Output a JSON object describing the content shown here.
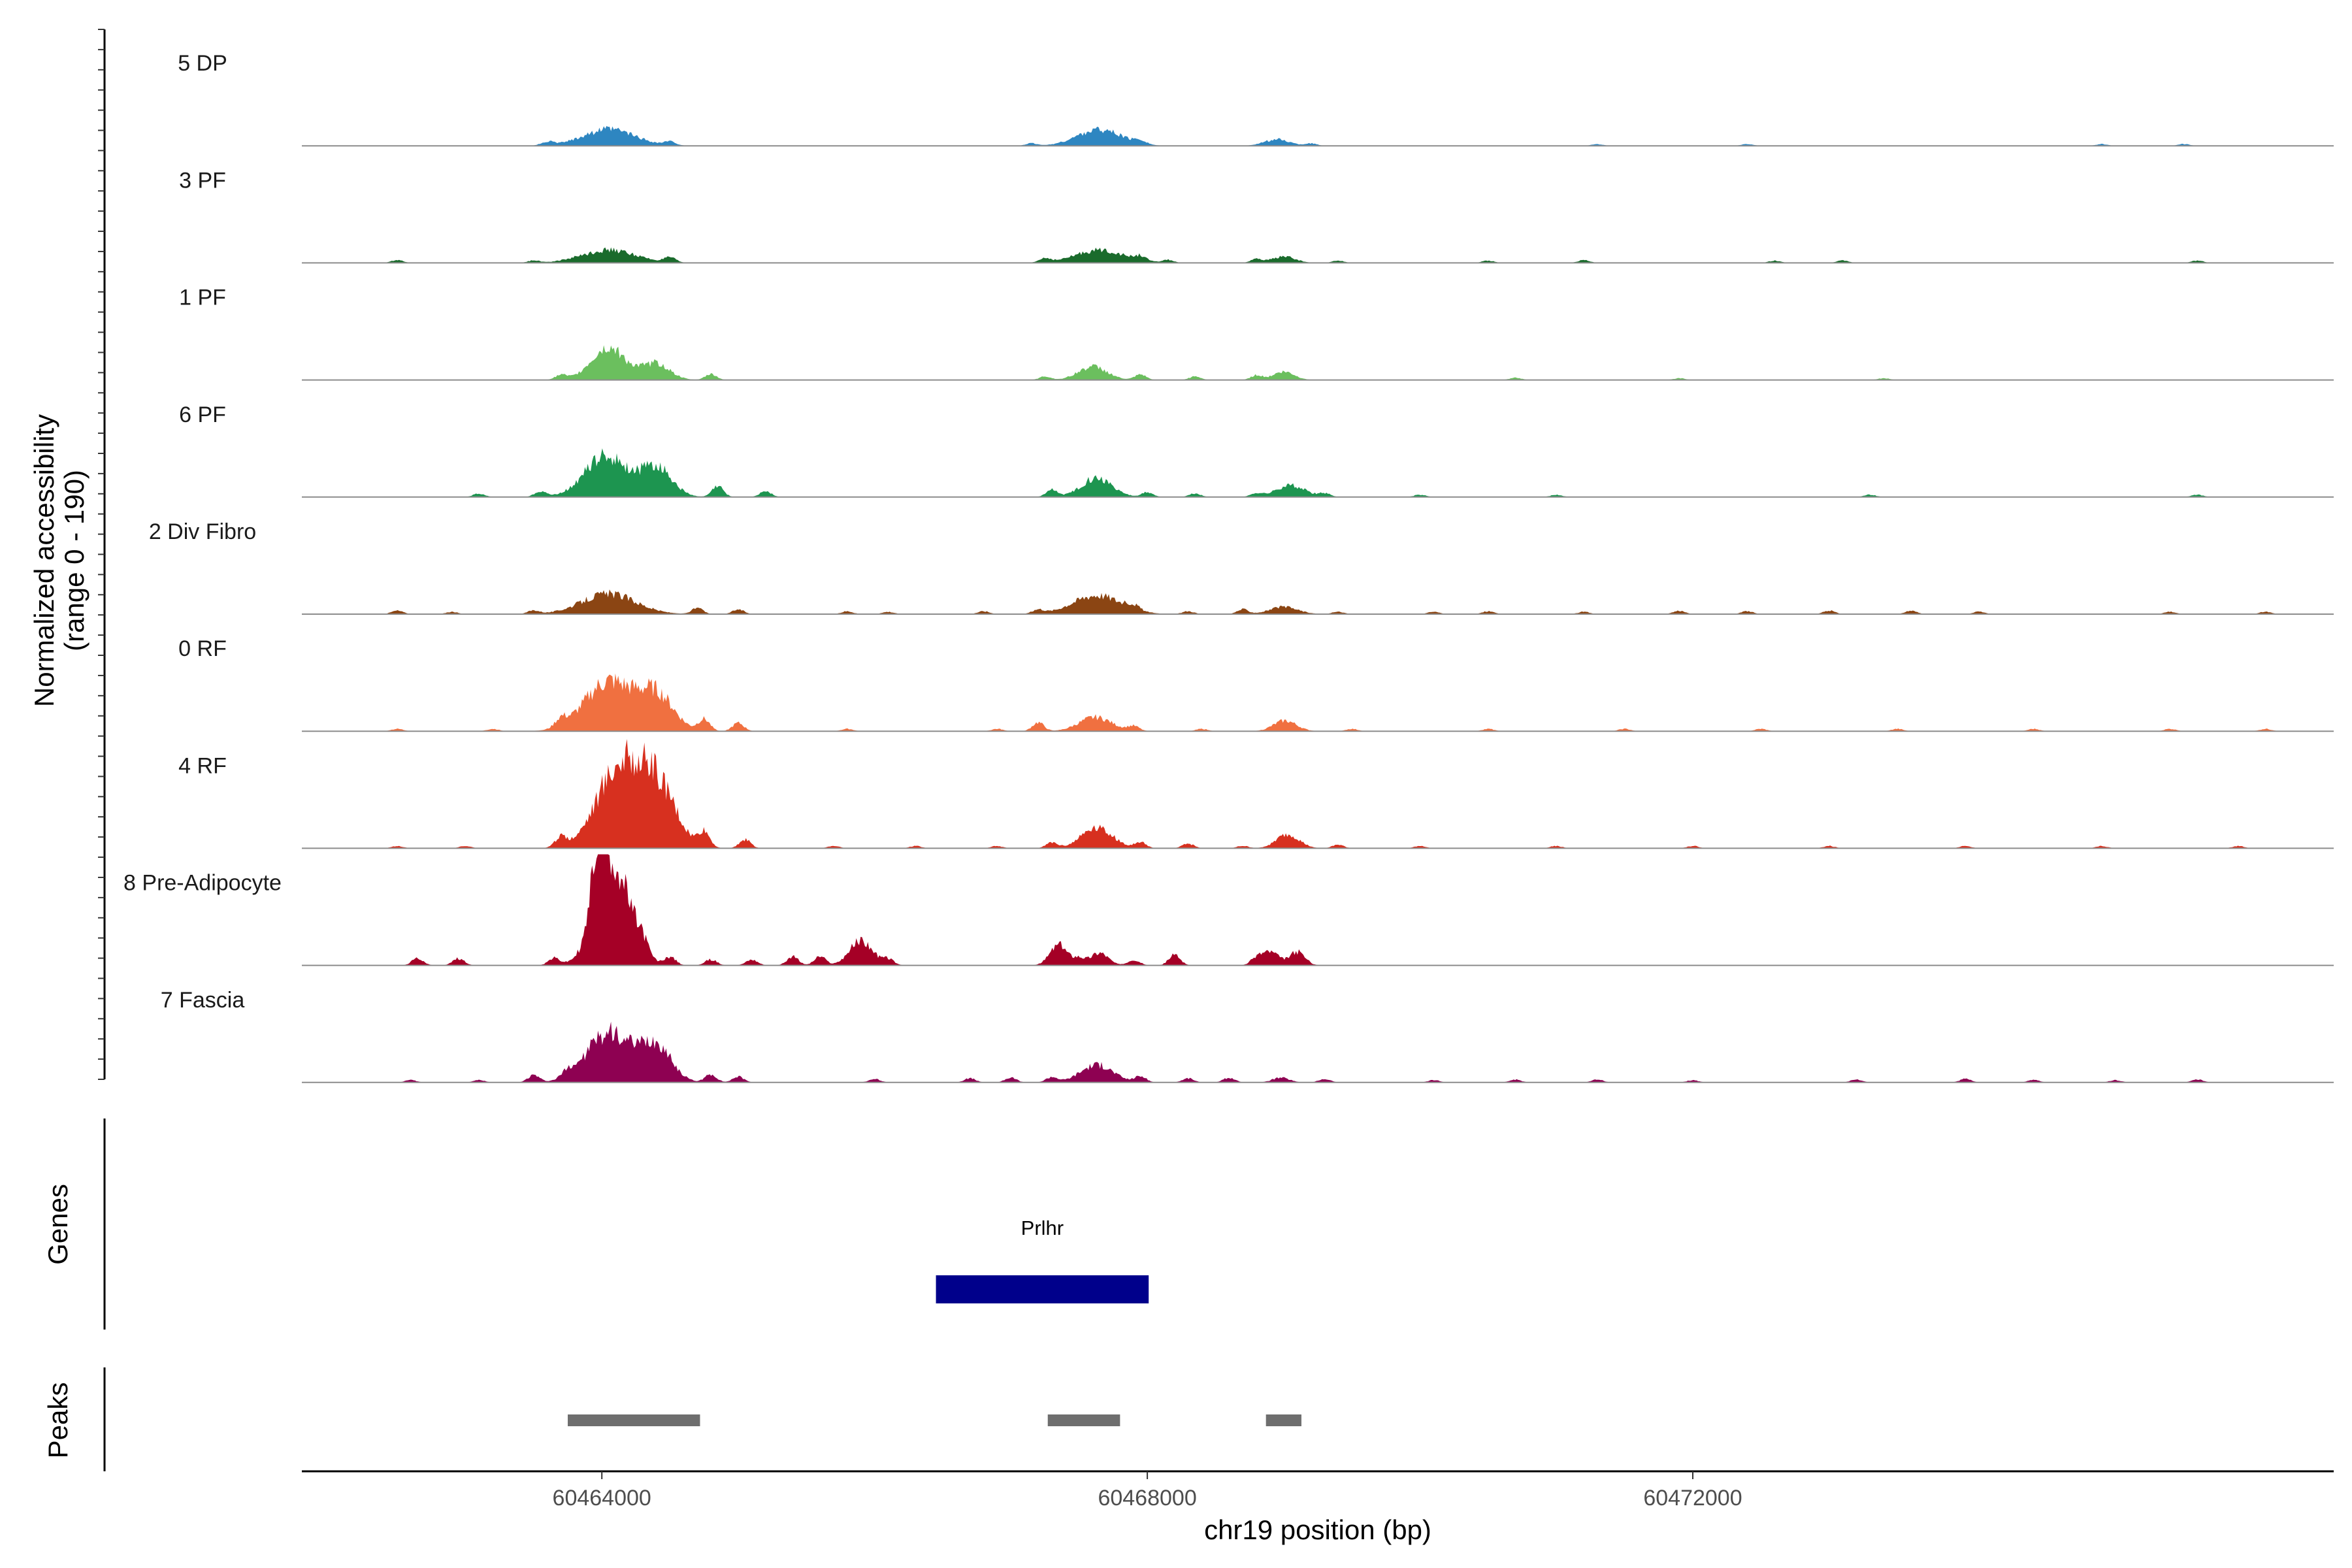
{
  "chart_data": {
    "type": "area",
    "chromosome": "chr19",
    "xlabel": "chr19 position (bp)",
    "ylabel": "Normalized accessibility",
    "ylabel_range": "(range 0 - 190)",
    "y_range": [
      0,
      190
    ],
    "x_range": [
      60461800,
      60476700
    ],
    "x_ticks": [
      {
        "value": 60464000,
        "label": "60464000"
      },
      {
        "value": 60468000,
        "label": "60468000"
      },
      {
        "value": 60472000,
        "label": "60472000"
      }
    ],
    "tracks": [
      {
        "name": "5 DP",
        "color": "#2E86C1",
        "peaks": [
          [
            60464050,
            270,
            28
          ],
          [
            60467650,
            230,
            28
          ],
          [
            60468950,
            130,
            11
          ]
        ],
        "bumps": [
          [
            60463600,
            6
          ],
          [
            60464500,
            6
          ],
          [
            60467150,
            4
          ],
          [
            60467950,
            6
          ],
          [
            60469200,
            4
          ],
          [
            60471300,
            3
          ],
          [
            60472400,
            3
          ],
          [
            60475000,
            3
          ],
          [
            60475600,
            3
          ]
        ]
      },
      {
        "name": "3 PF",
        "color": "#1A6B2C",
        "peaks": [
          [
            60464050,
            280,
            22
          ],
          [
            60467650,
            250,
            22
          ],
          [
            60469000,
            120,
            11
          ]
        ],
        "bumps": [
          [
            60462500,
            5
          ],
          [
            60463500,
            4
          ],
          [
            60464500,
            8
          ],
          [
            60467250,
            7
          ],
          [
            60467950,
            8
          ],
          [
            60468150,
            5
          ],
          [
            60468800,
            6
          ],
          [
            60469400,
            4
          ],
          [
            60470500,
            4
          ],
          [
            60471200,
            5
          ],
          [
            60472600,
            4
          ],
          [
            60473100,
            4
          ],
          [
            60475700,
            4
          ]
        ]
      },
      {
        "name": "1 PF",
        "color": "#6BBF5E",
        "peaks": [
          [
            60464050,
            180,
            55
          ],
          [
            60464400,
            140,
            28
          ],
          [
            60467600,
            150,
            23
          ],
          [
            60469000,
            110,
            14
          ]
        ],
        "bumps": [
          [
            60463700,
            8
          ],
          [
            60464800,
            10
          ],
          [
            60467250,
            6
          ],
          [
            60467950,
            9
          ],
          [
            60468350,
            6
          ],
          [
            60468800,
            8
          ],
          [
            60470700,
            4
          ],
          [
            60471900,
            3
          ],
          [
            60473400,
            3
          ]
        ]
      },
      {
        "name": "6 PF",
        "color": "#1D9550",
        "peaks": [
          [
            60464030,
            220,
            70
          ],
          [
            60464400,
            160,
            50
          ],
          [
            60467630,
            160,
            33
          ],
          [
            60469050,
            150,
            20
          ]
        ],
        "bumps": [
          [
            60463100,
            6
          ],
          [
            60463550,
            10
          ],
          [
            60464850,
            18
          ],
          [
            60465200,
            10
          ],
          [
            60467300,
            12
          ],
          [
            60468000,
            8
          ],
          [
            60468350,
            6
          ],
          [
            60468800,
            6
          ],
          [
            60469300,
            6
          ],
          [
            60470000,
            4
          ],
          [
            60471000,
            4
          ],
          [
            60473300,
            4
          ],
          [
            60475700,
            4
          ]
        ]
      },
      {
        "name": "2 Div Fibro",
        "color": "#8B4513",
        "peaks": [
          [
            60464050,
            280,
            35
          ],
          [
            60467630,
            250,
            33
          ],
          [
            60469000,
            150,
            12
          ]
        ],
        "bumps": [
          [
            60462500,
            6
          ],
          [
            60462900,
            4
          ],
          [
            60463500,
            6
          ],
          [
            60464700,
            10
          ],
          [
            60465000,
            8
          ],
          [
            60465800,
            5
          ],
          [
            60466100,
            4
          ],
          [
            60466800,
            5
          ],
          [
            60467200,
            7
          ],
          [
            60467900,
            8
          ],
          [
            60468300,
            5
          ],
          [
            60468700,
            8
          ],
          [
            60469400,
            4
          ],
          [
            60470100,
            4
          ],
          [
            60470500,
            5
          ],
          [
            60471200,
            4
          ],
          [
            60471900,
            6
          ],
          [
            60472400,
            5
          ],
          [
            60473000,
            6
          ],
          [
            60473600,
            6
          ],
          [
            60474100,
            4
          ],
          [
            60475500,
            4
          ],
          [
            60476200,
            4
          ]
        ]
      },
      {
        "name": "0 RF",
        "color": "#F07040",
        "peaks": [
          [
            60464050,
            250,
            85
          ],
          [
            60464400,
            180,
            60
          ],
          [
            60467620,
            170,
            24
          ],
          [
            60469010,
            120,
            18
          ]
        ],
        "bumps": [
          [
            60463700,
            14
          ],
          [
            60464750,
            20
          ],
          [
            60465000,
            14
          ],
          [
            60467200,
            15
          ],
          [
            60467900,
            8
          ],
          [
            60462500,
            4
          ],
          [
            60463200,
            4
          ],
          [
            60465800,
            4
          ],
          [
            60466900,
            4
          ],
          [
            60468400,
            4
          ],
          [
            60469500,
            4
          ],
          [
            60470500,
            4
          ],
          [
            60471500,
            4
          ],
          [
            60472500,
            4
          ],
          [
            60473500,
            4
          ],
          [
            60474500,
            4
          ],
          [
            60475500,
            4
          ],
          [
            60476200,
            4
          ]
        ]
      },
      {
        "name": "4 RF",
        "color": "#D7301F",
        "peaks": [
          [
            60464120,
            230,
            135
          ],
          [
            60464400,
            200,
            100
          ],
          [
            60467630,
            160,
            36
          ],
          [
            60469030,
            120,
            23
          ]
        ],
        "bumps": [
          [
            60463700,
            16
          ],
          [
            60464750,
            25
          ],
          [
            60465050,
            15
          ],
          [
            60467300,
            10
          ],
          [
            60467950,
            10
          ],
          [
            60468300,
            8
          ],
          [
            60469400,
            6
          ],
          [
            60462500,
            4
          ],
          [
            60463000,
            4
          ],
          [
            60465700,
            4
          ],
          [
            60466300,
            4
          ],
          [
            60466900,
            4
          ],
          [
            60468700,
            4
          ],
          [
            60470000,
            4
          ],
          [
            60471000,
            4
          ],
          [
            60472000,
            4
          ],
          [
            60473000,
            4
          ],
          [
            60474000,
            4
          ],
          [
            60475000,
            4
          ],
          [
            60476000,
            4
          ]
        ]
      },
      {
        "name": "8 Pre-Adipocyte",
        "color": "#A50026",
        "peaks": [
          [
            60464080,
            180,
            170
          ],
          [
            60463980,
            70,
            120
          ],
          [
            60465900,
            120,
            42
          ],
          [
            60467350,
            90,
            35
          ],
          [
            60467650,
            90,
            22
          ],
          [
            60468900,
            90,
            23
          ],
          [
            60469100,
            80,
            23
          ]
        ],
        "bumps": [
          [
            60462650,
            12
          ],
          [
            60462950,
            12
          ],
          [
            60463650,
            12
          ],
          [
            60464300,
            20
          ],
          [
            60464500,
            14
          ],
          [
            60464800,
            10
          ],
          [
            60465100,
            10
          ],
          [
            60465400,
            15
          ],
          [
            60465600,
            15
          ],
          [
            60466100,
            10
          ],
          [
            60467500,
            12
          ],
          [
            60467900,
            10
          ],
          [
            60468200,
            18
          ],
          [
            60468800,
            10
          ]
        ]
      },
      {
        "name": "7 Fascia",
        "color": "#8E0152",
        "peaks": [
          [
            60464050,
            230,
            85
          ],
          [
            60464400,
            160,
            60
          ],
          [
            60467630,
            170,
            30
          ],
          [
            60468980,
            90,
            8
          ]
        ],
        "bumps": [
          [
            60463500,
            12
          ],
          [
            60463750,
            10
          ],
          [
            60464800,
            14
          ],
          [
            60465000,
            10
          ],
          [
            60466000,
            6
          ],
          [
            60466700,
            7
          ],
          [
            60467000,
            8
          ],
          [
            60467300,
            9
          ],
          [
            60467950,
            10
          ],
          [
            60468300,
            7
          ],
          [
            60468600,
            8
          ],
          [
            60469300,
            6
          ],
          [
            60470100,
            4
          ],
          [
            60470700,
            5
          ],
          [
            60471300,
            5
          ],
          [
            60472000,
            4
          ],
          [
            60473200,
            5
          ],
          [
            60474000,
            6
          ],
          [
            60474500,
            4
          ],
          [
            60475100,
            4
          ],
          [
            60475700,
            5
          ],
          [
            60462600,
            4
          ],
          [
            60463100,
            4
          ]
        ]
      }
    ],
    "genes_panel_label": "Genes",
    "genes": [
      {
        "name": "Prlhr",
        "start": 60466450,
        "end": 60468010,
        "color": "#00008B"
      }
    ],
    "peaks_panel_label": "Peaks",
    "peak_regions": [
      {
        "start": 60463750,
        "end": 60464720
      },
      {
        "start": 60467270,
        "end": 60467800
      },
      {
        "start": 60468870,
        "end": 60469130
      }
    ]
  }
}
